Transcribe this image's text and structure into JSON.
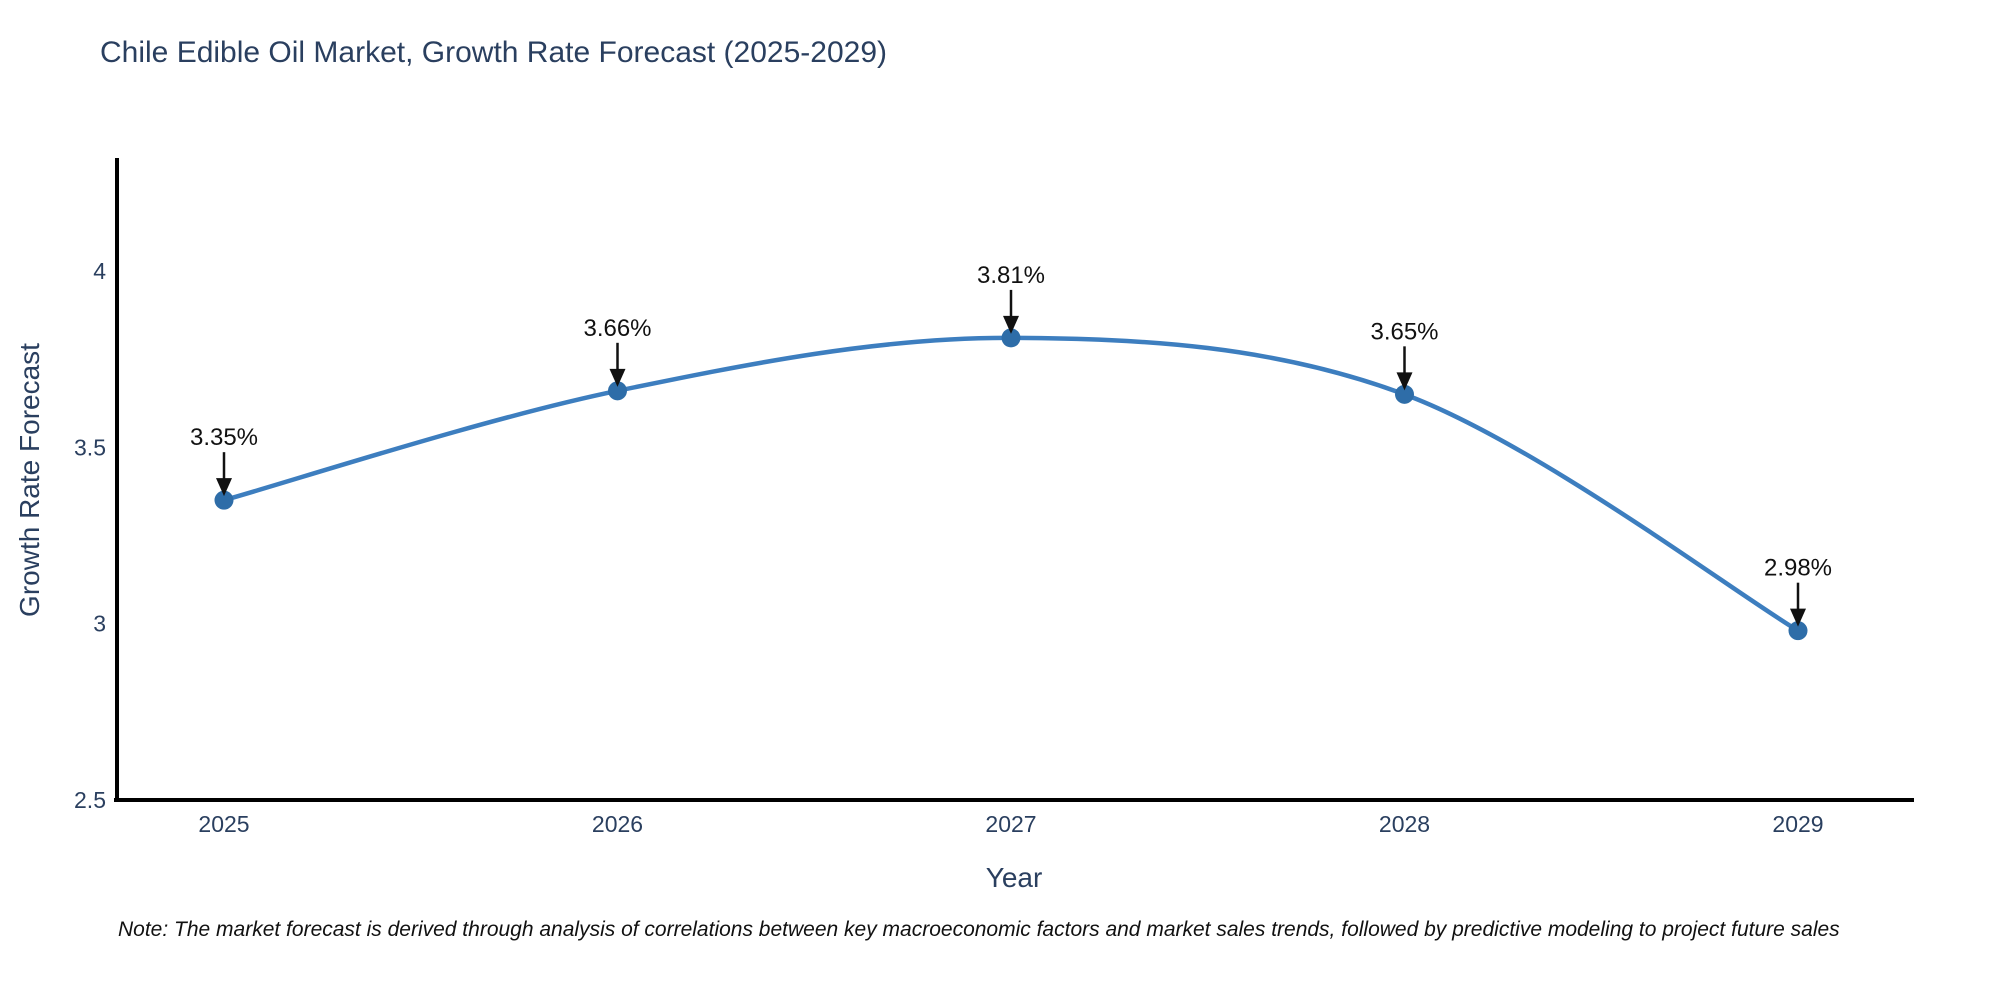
{
  "page": {
    "background": "#ffffff"
  },
  "chart_data": {
    "type": "line",
    "title": "Chile Edible Oil Market, Growth Rate Forecast (2025-2029)",
    "xlabel": "Year",
    "ylabel": "Growth Rate Forecast",
    "categories": [
      "2025",
      "2026",
      "2027",
      "2028",
      "2029"
    ],
    "values": [
      3.35,
      3.66,
      3.81,
      3.65,
      2.98
    ],
    "point_labels": [
      "3.35%",
      "3.66%",
      "3.81%",
      "3.65%",
      "2.98%"
    ],
    "yticks": [
      2.5,
      3,
      3.5,
      4
    ],
    "ylim": [
      2.5,
      4.32
    ],
    "line_shape": "spline",
    "grid": false,
    "legend": "none",
    "line_color": "#3d7ebf",
    "marker_color": "#2e6da8",
    "axis_color": "#000000",
    "tick_color": "#2a3f5f",
    "annotation_color": "#111111"
  },
  "note": {
    "text": "Note: The market forecast is derived through analysis of correlations between key macroeconomic factors and market sales trends, followed by predictive modeling to project future sales"
  }
}
